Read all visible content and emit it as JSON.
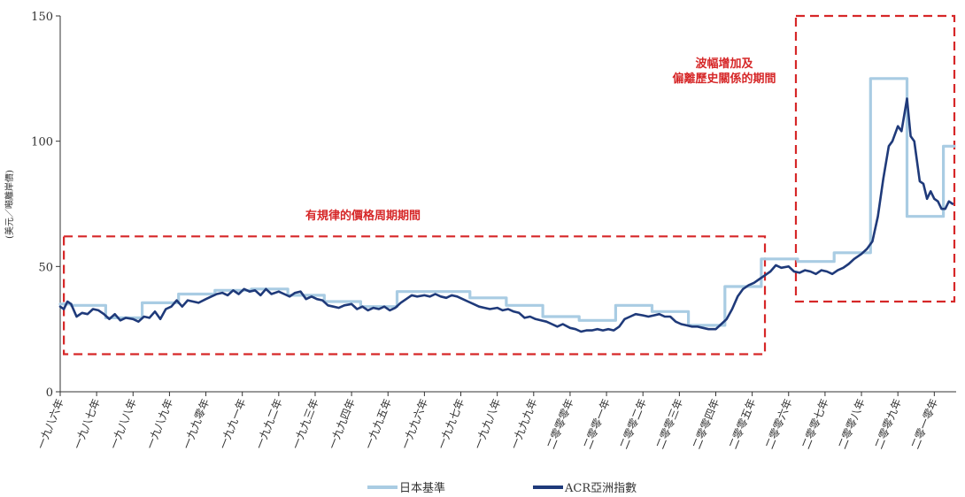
{
  "chart_data": {
    "type": "line",
    "ylabel": "(美元／噸離岸價)",
    "ylim": [
      0,
      150
    ],
    "yticks": [
      0,
      50,
      100,
      150
    ],
    "xlim": [
      1986,
      2010.6
    ],
    "x_ticks": [
      {
        "x": 1986,
        "label": "一九八六年"
      },
      {
        "x": 1987,
        "label": "一九八七年"
      },
      {
        "x": 1988,
        "label": "一九八八年"
      },
      {
        "x": 1989,
        "label": "一九八九年"
      },
      {
        "x": 1990,
        "label": "一九九零年"
      },
      {
        "x": 1991,
        "label": "一九九一年"
      },
      {
        "x": 1992,
        "label": "一九九二年"
      },
      {
        "x": 1993,
        "label": "一九九三年"
      },
      {
        "x": 1994,
        "label": "一九九四年"
      },
      {
        "x": 1995,
        "label": "一九九五年"
      },
      {
        "x": 1996,
        "label": "一九九六年"
      },
      {
        "x": 1997,
        "label": "一九九七年"
      },
      {
        "x": 1998,
        "label": "一九九八年"
      },
      {
        "x": 1999,
        "label": "一九九九年"
      },
      {
        "x": 2000,
        "label": "二零零零年"
      },
      {
        "x": 2001,
        "label": "二零零一年"
      },
      {
        "x": 2002,
        "label": "二零零二年"
      },
      {
        "x": 2003,
        "label": "二零零三年"
      },
      {
        "x": 2004,
        "label": "二零零四年"
      },
      {
        "x": 2005,
        "label": "二零零五年"
      },
      {
        "x": 2006,
        "label": "二零零六年"
      },
      {
        "x": 2007,
        "label": "二零零七年"
      },
      {
        "x": 2008,
        "label": "二零零八年"
      },
      {
        "x": 2009,
        "label": "二零零九年"
      },
      {
        "x": 2010,
        "label": "二零一零年"
      }
    ],
    "series": [
      {
        "name": "日本基準",
        "color": "#a9cce3",
        "step": true,
        "points": [
          [
            1986.0,
            35
          ],
          [
            1986.3,
            35
          ],
          [
            1986.3,
            34.5
          ],
          [
            1987.25,
            34.5
          ],
          [
            1987.25,
            29.5
          ],
          [
            1988.25,
            29.5
          ],
          [
            1988.25,
            35.5
          ],
          [
            1989.25,
            35.5
          ],
          [
            1989.25,
            39
          ],
          [
            1990.25,
            39
          ],
          [
            1990.25,
            40.5
          ],
          [
            1991.25,
            40.5
          ],
          [
            1991.25,
            41
          ],
          [
            1992.25,
            41
          ],
          [
            1992.25,
            38.5
          ],
          [
            1993.25,
            38.5
          ],
          [
            1993.25,
            36
          ],
          [
            1994.25,
            36
          ],
          [
            1994.25,
            34
          ],
          [
            1995.25,
            34
          ],
          [
            1995.25,
            40
          ],
          [
            1996.25,
            40
          ],
          [
            1996.25,
            40
          ],
          [
            1997.25,
            40
          ],
          [
            1997.25,
            37.5
          ],
          [
            1998.25,
            37.5
          ],
          [
            1998.25,
            34.5
          ],
          [
            1999.25,
            34.5
          ],
          [
            1999.25,
            30
          ],
          [
            2000.25,
            30
          ],
          [
            2000.25,
            28.5
          ],
          [
            2001.25,
            28.5
          ],
          [
            2001.25,
            34.5
          ],
          [
            2002.25,
            34.5
          ],
          [
            2002.25,
            32
          ],
          [
            2003.25,
            32
          ],
          [
            2003.25,
            26.5
          ],
          [
            2004.25,
            26.5
          ],
          [
            2004.25,
            42
          ],
          [
            2005.25,
            42
          ],
          [
            2005.25,
            53
          ],
          [
            2006.25,
            53
          ],
          [
            2006.25,
            52
          ],
          [
            2007.25,
            52
          ],
          [
            2007.25,
            55.5
          ],
          [
            2008.25,
            55.5
          ],
          [
            2008.25,
            125
          ],
          [
            2009.25,
            125
          ],
          [
            2009.25,
            70
          ],
          [
            2010.25,
            70
          ],
          [
            2010.25,
            98
          ],
          [
            2010.55,
            98
          ]
        ]
      },
      {
        "name": "ACR亞洲指數",
        "color": "#1f3a7a",
        "step": false,
        "points": [
          [
            1986.0,
            34
          ],
          [
            1986.1,
            33
          ],
          [
            1986.2,
            36
          ],
          [
            1986.3,
            35
          ],
          [
            1986.45,
            30
          ],
          [
            1986.6,
            31.5
          ],
          [
            1986.75,
            31
          ],
          [
            1986.9,
            33
          ],
          [
            1987.05,
            32.5
          ],
          [
            1987.2,
            31
          ],
          [
            1987.35,
            29
          ],
          [
            1987.5,
            31
          ],
          [
            1987.65,
            28.5
          ],
          [
            1987.8,
            29.5
          ],
          [
            1988.0,
            29
          ],
          [
            1988.15,
            28
          ],
          [
            1988.3,
            30
          ],
          [
            1988.45,
            29.5
          ],
          [
            1988.6,
            32
          ],
          [
            1988.75,
            29
          ],
          [
            1988.9,
            33
          ],
          [
            1989.05,
            34
          ],
          [
            1989.2,
            36.5
          ],
          [
            1989.35,
            34
          ],
          [
            1989.5,
            36.5
          ],
          [
            1989.65,
            36
          ],
          [
            1989.8,
            35.5
          ],
          [
            1990.0,
            37
          ],
          [
            1990.15,
            38
          ],
          [
            1990.3,
            39
          ],
          [
            1990.45,
            39.5
          ],
          [
            1990.6,
            38.5
          ],
          [
            1990.75,
            40.5
          ],
          [
            1990.9,
            39
          ],
          [
            1991.05,
            41
          ],
          [
            1991.2,
            40
          ],
          [
            1991.35,
            40.5
          ],
          [
            1991.5,
            38.5
          ],
          [
            1991.65,
            41
          ],
          [
            1991.8,
            39
          ],
          [
            1992.0,
            40
          ],
          [
            1992.15,
            39
          ],
          [
            1992.3,
            38
          ],
          [
            1992.45,
            39.5
          ],
          [
            1992.6,
            40
          ],
          [
            1992.75,
            37
          ],
          [
            1992.9,
            38
          ],
          [
            1993.05,
            37
          ],
          [
            1993.2,
            36.5
          ],
          [
            1993.35,
            34.5
          ],
          [
            1993.5,
            34
          ],
          [
            1993.65,
            33.5
          ],
          [
            1993.8,
            34.5
          ],
          [
            1994.0,
            35
          ],
          [
            1994.15,
            33
          ],
          [
            1994.3,
            34
          ],
          [
            1994.45,
            32.5
          ],
          [
            1994.6,
            33.5
          ],
          [
            1994.75,
            33
          ],
          [
            1994.9,
            34
          ],
          [
            1995.05,
            32.5
          ],
          [
            1995.2,
            33.5
          ],
          [
            1995.35,
            35.5
          ],
          [
            1995.5,
            37
          ],
          [
            1995.65,
            38.5
          ],
          [
            1995.8,
            38
          ],
          [
            1996.0,
            38.5
          ],
          [
            1996.15,
            38
          ],
          [
            1996.3,
            39
          ],
          [
            1996.45,
            38
          ],
          [
            1996.6,
            37.5
          ],
          [
            1996.75,
            38.5
          ],
          [
            1996.9,
            38
          ],
          [
            1997.05,
            37
          ],
          [
            1997.2,
            36
          ],
          [
            1997.35,
            35
          ],
          [
            1997.5,
            34
          ],
          [
            1997.65,
            33.5
          ],
          [
            1997.8,
            33
          ],
          [
            1998.0,
            33.5
          ],
          [
            1998.15,
            32.5
          ],
          [
            1998.3,
            33
          ],
          [
            1998.45,
            32
          ],
          [
            1998.6,
            31.5
          ],
          [
            1998.75,
            29.5
          ],
          [
            1998.9,
            30
          ],
          [
            1999.05,
            29
          ],
          [
            1999.2,
            28.5
          ],
          [
            1999.35,
            28
          ],
          [
            1999.5,
            27
          ],
          [
            1999.65,
            26
          ],
          [
            1999.8,
            27
          ],
          [
            2000.0,
            25.5
          ],
          [
            2000.15,
            25
          ],
          [
            2000.3,
            24
          ],
          [
            2000.45,
            24.5
          ],
          [
            2000.6,
            24.5
          ],
          [
            2000.75,
            25
          ],
          [
            2000.9,
            24.5
          ],
          [
            2001.05,
            25
          ],
          [
            2001.2,
            24.5
          ],
          [
            2001.35,
            26
          ],
          [
            2001.5,
            29
          ],
          [
            2001.65,
            30
          ],
          [
            2001.8,
            31
          ],
          [
            2002.0,
            30.5
          ],
          [
            2002.15,
            30
          ],
          [
            2002.3,
            30.5
          ],
          [
            2002.45,
            31
          ],
          [
            2002.6,
            30
          ],
          [
            2002.75,
            30
          ],
          [
            2002.9,
            28
          ],
          [
            2003.05,
            27
          ],
          [
            2003.2,
            26.5
          ],
          [
            2003.35,
            26
          ],
          [
            2003.5,
            26
          ],
          [
            2003.65,
            25.5
          ],
          [
            2003.8,
            25
          ],
          [
            2004.0,
            25
          ],
          [
            2004.15,
            27
          ],
          [
            2004.3,
            29
          ],
          [
            2004.45,
            33
          ],
          [
            2004.6,
            38
          ],
          [
            2004.75,
            41
          ],
          [
            2004.9,
            42.5
          ],
          [
            2005.05,
            43.5
          ],
          [
            2005.2,
            45
          ],
          [
            2005.35,
            46.5
          ],
          [
            2005.5,
            48
          ],
          [
            2005.65,
            50.5
          ],
          [
            2005.8,
            49.5
          ],
          [
            2006.0,
            50
          ],
          [
            2006.15,
            48
          ],
          [
            2006.3,
            47.5
          ],
          [
            2006.45,
            48.5
          ],
          [
            2006.6,
            48
          ],
          [
            2006.75,
            47
          ],
          [
            2006.9,
            48.5
          ],
          [
            2007.05,
            48
          ],
          [
            2007.2,
            47
          ],
          [
            2007.35,
            48.5
          ],
          [
            2007.5,
            49.5
          ],
          [
            2007.65,
            51
          ],
          [
            2007.8,
            53
          ],
          [
            2008.0,
            55
          ],
          [
            2008.15,
            57
          ],
          [
            2008.3,
            60
          ],
          [
            2008.45,
            70
          ],
          [
            2008.6,
            85
          ],
          [
            2008.75,
            98
          ],
          [
            2008.85,
            100
          ],
          [
            2009.0,
            106
          ],
          [
            2009.1,
            104
          ],
          [
            2009.25,
            117
          ],
          [
            2009.35,
            102
          ],
          [
            2009.45,
            100
          ],
          [
            2009.6,
            84
          ],
          [
            2009.7,
            83
          ],
          [
            2009.8,
            77
          ],
          [
            2009.9,
            80
          ],
          [
            2010.0,
            77
          ],
          [
            2010.1,
            76
          ],
          [
            2010.2,
            73
          ],
          [
            2010.3,
            73
          ],
          [
            2010.4,
            76
          ],
          [
            2010.5,
            75
          ]
        ]
      }
    ],
    "regions": [
      {
        "label_lines": [
          "有規律的價格周期期間"
        ],
        "x0": 1986.1,
        "x1": 2005.35,
        "y0": 15,
        "y1": 62
      },
      {
        "label_lines": [
          "波幅增加及",
          "偏離歷史關係的期間"
        ],
        "x0": 2006.2,
        "x1": 2010.6,
        "y0": 36,
        "y1": 150
      }
    ],
    "legend": [
      {
        "label": "日本基準",
        "color": "#a9cce3"
      },
      {
        "label": "ACR亞洲指數",
        "color": "#1f3a7a"
      }
    ],
    "grid": false,
    "legend_position": "bottom-center"
  }
}
